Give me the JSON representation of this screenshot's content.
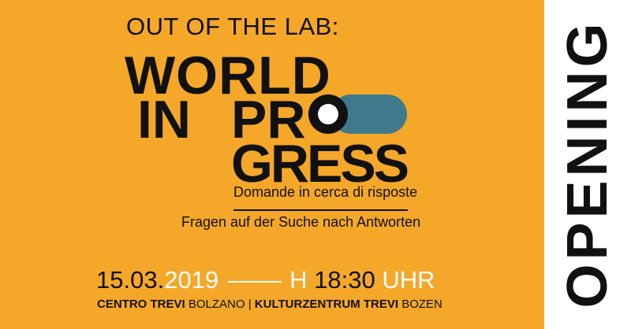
{
  "colors": {
    "background": "#f5a72a",
    "accent_pill": "#3e7a8b",
    "side_panel": "#ffffff",
    "text": "#111111",
    "highlight_text": "#ffffff"
  },
  "title": {
    "pretitle": "OUT OF THE LAB:",
    "line1": "WORLD",
    "line2a": "IN",
    "line2b": "PRO",
    "line3": "GRESS"
  },
  "subtitle": {
    "italian": "Domande in cerca di risposte",
    "german": "Fragen auf der Suche nach Antworten"
  },
  "date": {
    "daymonth": "15.03.",
    "year": "2019",
    "hour_prefix": "H",
    "time": "18:30",
    "suffix": "UHR"
  },
  "location": {
    "it_bold": "CENTRO TREVI",
    "it_city": "BOLZANO",
    "separator": "|",
    "de_bold": "KULTURZENTRUM TREVI",
    "de_city": "BOZEN"
  },
  "side": {
    "label": "OPENING"
  }
}
